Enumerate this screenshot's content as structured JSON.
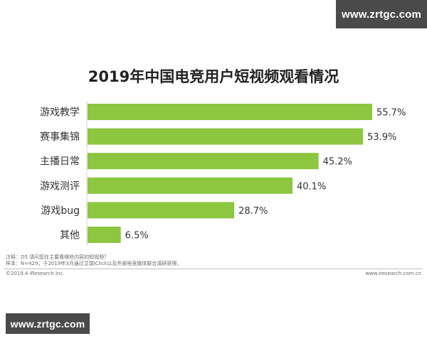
{
  "watermark": {
    "top": "www.zrtgc.com",
    "bottom": "www.zrtgc.com"
  },
  "colors": {
    "bar": "#8dc63f",
    "axis": "#cfcfcf",
    "text": "#333333"
  },
  "chart_data": {
    "type": "bar",
    "orientation": "horizontal",
    "title": "2019年中国电竞用户短视频观看情况",
    "categories": [
      "游戏教学",
      "赛事集锦",
      "主播日常",
      "游戏测评",
      "游戏bug",
      "其他"
    ],
    "values": [
      55.7,
      53.9,
      45.2,
      40.1,
      28.7,
      6.5
    ],
    "value_labels": [
      "55.7%",
      "53.9%",
      "45.2%",
      "40.1%",
      "28.7%",
      "6.5%"
    ],
    "unit": "%",
    "xlim": [
      0,
      55.7
    ],
    "grid": false,
    "legend": "none"
  },
  "footer": {
    "note1": "注释：D5 请问您在主要看哪些内容的短视频？",
    "note2": "样本：N=429；于2019年3月通过艾瑞iClick以及外部电竞媒体联合调研获得。",
    "copyright": "©2019.4 iResearch Inc.",
    "site": "www.iresearch.com.cn"
  }
}
